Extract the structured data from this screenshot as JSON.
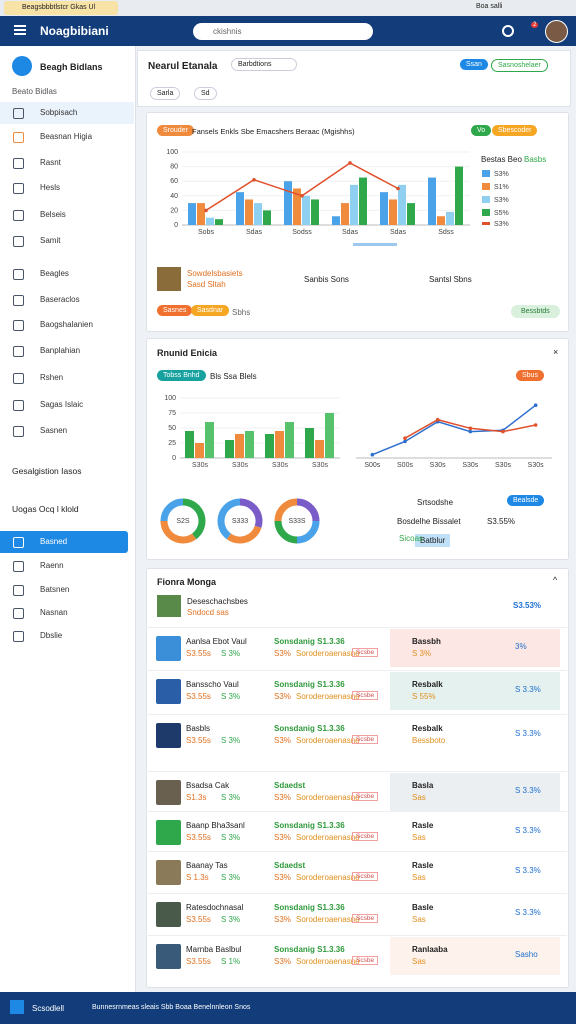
{
  "tab": "Beagsbbbtlstcr Gkas Ul",
  "tab_right": "Boa salli",
  "header": {
    "title": "Noagbibiani",
    "search": "ckishnis",
    "badge": "2"
  },
  "sidebar": {
    "profile": "Beagh Bidlans",
    "label": "Beato Bidlas",
    "items": [
      "Sobpisach",
      "Beasnan Higia",
      "Rasnt",
      "Hesls",
      "Belseis",
      "Samit",
      "Beagles",
      "Baseraclos",
      "Baogshalanien",
      "Banplahian",
      "Rshen",
      "Sagas Islaic",
      "Sasnen"
    ],
    "group1": "Gesalgistion Iasos",
    "group2": "Uogas Ocq l klold",
    "items2": [
      "Basned",
      "Raenn",
      "Batsnen",
      "Nasnan",
      "Dbslie"
    ]
  },
  "toolbar": {
    "title": "Nearul Etanala",
    "search": "Barbdtions",
    "f1": "Sarla",
    "f2": "Sd",
    "btn": "Ssan",
    "link": "Sasnoshelaer"
  },
  "panel1": {
    "tag": "Srouder",
    "title": "Fansels Enkls Sbe Emacshers Beraac (Mgishhs)",
    "toggle": "Vo",
    "badge": "Sbescoder",
    "legend_title": "Bestas Beo",
    "legend_value": "Basbs",
    "chart": {
      "type": "bar",
      "categories": [
        "Sobs",
        "Sdas",
        "Sodss",
        "Sdas",
        "Sdas",
        "Sdss"
      ],
      "ylim": [
        0,
        100
      ],
      "yticks": [
        0,
        20,
        40,
        60,
        80,
        100
      ],
      "series": [
        {
          "name": "S3%",
          "color": "#4aa3e8",
          "values": [
            30,
            45,
            60,
            12,
            45,
            65
          ]
        },
        {
          "name": "S1%",
          "color": "#f08a3c",
          "values": [
            30,
            35,
            50,
            30,
            35,
            12
          ]
        },
        {
          "name": "S3%",
          "color": "#8fd0f0",
          "values": [
            10,
            30,
            40,
            55,
            55,
            18
          ]
        },
        {
          "name": "S5%",
          "color": "#2ea84a",
          "values": [
            8,
            20,
            35,
            65,
            30,
            80
          ]
        }
      ],
      "line": {
        "name": "S3%",
        "color": "#e0502a",
        "values": [
          20,
          62,
          40,
          85,
          50,
          null
        ]
      }
    },
    "stat_title": "Sowdelsbasiets",
    "stat_sub": "Sasd Sltah",
    "stat2": "Sanbis Sons",
    "stat3": "Santsl Sbns",
    "btn1": "Sasnes",
    "btn2": "Sasdnar",
    "link": "Sbhs",
    "btn3": "Bessbtds"
  },
  "panel2": {
    "title": "Rnunid Enicia",
    "tag": "Tobss Bnhd",
    "sub": "Bls Ssa Blels",
    "badge": "Sbus",
    "bars": {
      "type": "bar",
      "categories": [
        "S30s",
        "S30s",
        "S30s",
        "S30s"
      ],
      "ylim": [
        0,
        100
      ],
      "yticks": [
        0,
        25,
        50,
        75,
        100
      ],
      "series": [
        {
          "name": "Srtsodshe",
          "color": "#2ea84a",
          "values": [
            45,
            30,
            40,
            50
          ]
        },
        {
          "name": "Bosdelhe",
          "color": "#f08a3c",
          "values": [
            25,
            40,
            45,
            30
          ]
        },
        {
          "name": "Sicoas",
          "color": "#56c26c",
          "values": [
            60,
            45,
            60,
            75
          ]
        }
      ]
    },
    "line": {
      "type": "line",
      "categories": [
        "S00s",
        "S00s",
        "S30s",
        "S30s",
        "S30s",
        "S30s"
      ],
      "ylim": [
        0,
        100
      ],
      "series": [
        {
          "name": "Srtsodshe",
          "color": "#2f6fd0",
          "values": [
            5,
            25,
            55,
            40,
            42,
            80
          ]
        },
        {
          "name": "Bosdelhe",
          "color": "#e0502a",
          "values": [
            null,
            30,
            58,
            45,
            40,
            50
          ]
        }
      ]
    },
    "donuts": [
      {
        "label": "S2S",
        "values": [
          40,
          35,
          25
        ],
        "colors": [
          "#2ea84a",
          "#f08a3c",
          "#4aa3e8"
        ]
      },
      {
        "label": "S333",
        "values": [
          30,
          30,
          40
        ],
        "colors": [
          "#7a5cc8",
          "#f08a3c",
          "#4aa3e8"
        ]
      },
      {
        "label": "S33S",
        "values": [
          25,
          25,
          25,
          25
        ],
        "colors": [
          "#7a5cc8",
          "#4aa3e8",
          "#2ea84a",
          "#f08a3c"
        ]
      }
    ],
    "legend1": "Srtsodshe",
    "legend2": "Bosdelhe Bissalet",
    "legend3": "Sicoas",
    "legend_value": "S3.55%",
    "btn": "Bealsde",
    "chip": "Batblur"
  },
  "panel3": {
    "title": "Fionra Monga",
    "head_name": "Deseschachsbes",
    "head_sub": "Sndocd sas",
    "head_value": "S3.53%",
    "rows": [
      {
        "name": "Aanlsa Ebot Vaul",
        "price": "S3.55s",
        "change": "S 3%",
        "metric": "Sonsdanig S1.3.36",
        "pct": "S3%",
        "note": "Soroderoaenasno",
        "tag": "Scsbe",
        "side_name": "Bassbh",
        "side_sub": "S 3%",
        "side_value": "3%"
      },
      {
        "name": "Bansscho Vaul",
        "price": "S3.55s",
        "change": "S 3%",
        "metric": "Sonsdanig S1.3.36",
        "pct": "S3%",
        "note": "Soroderoaenasno",
        "tag": "Scsbe",
        "side_name": "Resbalk",
        "side_sub": "S 55%",
        "side_value": "S 3.3%"
      },
      {
        "name": "Basbls",
        "price": "S3.55s",
        "change": "S 3%",
        "metric": "Sonsdanig S1.3.36",
        "pct": "S3%",
        "note": "Soroderoaenasno",
        "tag": "Scsbe",
        "side_name": "Resbalk",
        "side_sub": "Bessboto",
        "side_value": "S 3.3%"
      },
      {
        "name": "Bsadsa Cak",
        "price": "S1.3s",
        "change": "S 3%",
        "metric": "Sdaedst",
        "pct": "S3%",
        "note": "Soroderoaenasno",
        "tag": "Scsbe",
        "side_name": "Basla",
        "side_sub": "Sas",
        "side_value": "S 3.3%"
      },
      {
        "name": "Baanp Bha3sanl",
        "price": "S3.55s",
        "change": "S 3%",
        "metric": "Sonsdanig S1.3.36",
        "pct": "S3%",
        "note": "Soroderoaenasno",
        "tag": "Scsbe",
        "side_name": "Rasle",
        "side_sub": "Sas",
        "side_value": "S 3.3%"
      },
      {
        "name": "Baanay Tas",
        "price": "S 1.3s",
        "change": "S 3%",
        "metric": "Sdaedst",
        "pct": "S3%",
        "note": "Soroderoaenasno",
        "tag": "Scsbe",
        "side_name": "Rasle",
        "side_sub": "Sas",
        "side_value": "S 3.3%"
      },
      {
        "name": "Ratesdochnasal",
        "price": "S3.55s",
        "change": "S 3%",
        "metric": "Sonsdanig S1.3.36",
        "pct": "S3%",
        "note": "Soroderoaenasno",
        "tag": "Scsbe",
        "side_name": "Basle",
        "side_sub": "Sas",
        "side_value": "S 3.3%"
      },
      {
        "name": "Marnba Baslbul",
        "price": "S3.55s",
        "change": "S 1%",
        "metric": "Sonsdanig S1.3.36",
        "pct": "S3%",
        "note": "Soroderoaenasno",
        "tag": "Scsbe",
        "side_name": "Ranlaaba",
        "side_sub": "Sas",
        "side_value": "Sasho"
      }
    ]
  },
  "bottom": {
    "app": "Scsodlell",
    "text": "Bunnesrnmeas sleais Sbb Boaa Benelnnleon Snos"
  }
}
